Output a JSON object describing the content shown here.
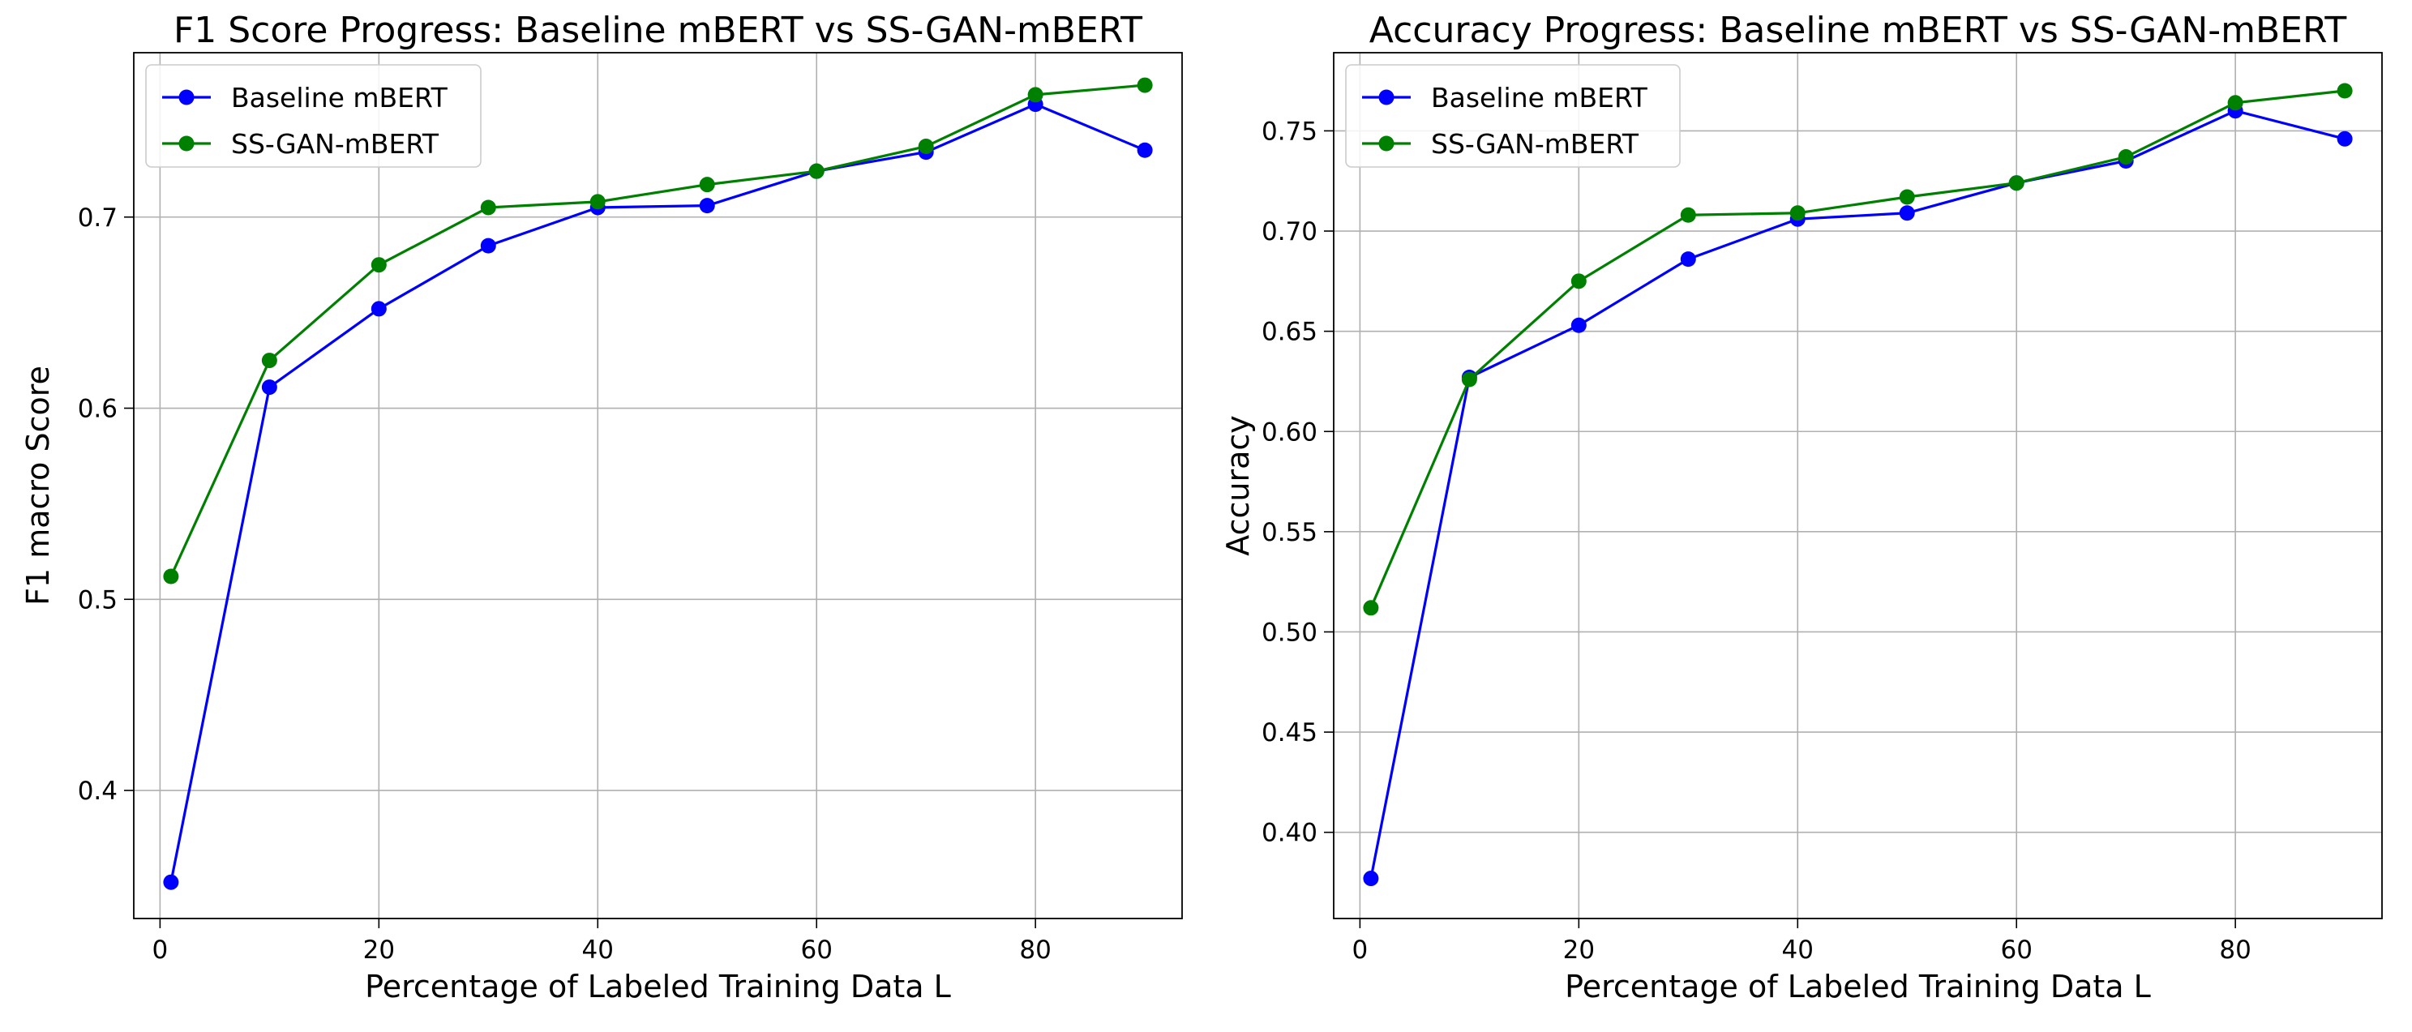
{
  "chart_data": [
    {
      "type": "line",
      "title": "F1 Score Progress: Baseline mBERT vs SS-GAN-mBERT",
      "xlabel": "Percentage of Labeled Training Data L",
      "ylabel": "F1 macro Score",
      "x": [
        1,
        10,
        20,
        30,
        40,
        50,
        60,
        70,
        80,
        90
      ],
      "xlim": [
        -2.4,
        93.4
      ],
      "ylim": [
        0.333,
        0.786
      ],
      "xticks": [
        0,
        20,
        40,
        60,
        80
      ],
      "xtick_labels": [
        "0",
        "20",
        "40",
        "60",
        "80"
      ],
      "yticks": [
        0.4,
        0.5,
        0.6,
        0.7
      ],
      "ytick_labels": [
        "0.4",
        "0.5",
        "0.6",
        "0.7"
      ],
      "grid": true,
      "legend_position": "top-left",
      "series": [
        {
          "name": "Baseline mBERT",
          "color": "#0000ff",
          "marker": "circle",
          "values": [
            0.352,
            0.611,
            0.652,
            0.685,
            0.705,
            0.706,
            0.724,
            0.734,
            0.759,
            0.735
          ]
        },
        {
          "name": "SS-GAN-mBERT",
          "color": "#008000",
          "marker": "circle",
          "values": [
            0.512,
            0.625,
            0.675,
            0.705,
            0.708,
            0.717,
            0.724,
            0.737,
            0.764,
            0.769
          ]
        }
      ]
    },
    {
      "type": "line",
      "title": "Accuracy Progress: Baseline mBERT vs SS-GAN-mBERT",
      "xlabel": "Percentage of Labeled Training Data L",
      "ylabel": "Accuracy",
      "x": [
        1,
        10,
        20,
        30,
        40,
        50,
        60,
        70,
        80,
        90
      ],
      "xlim": [
        -2.4,
        93.4
      ],
      "ylim": [
        0.357,
        0.789
      ],
      "xticks": [
        0,
        20,
        40,
        60,
        80
      ],
      "xtick_labels": [
        "0",
        "20",
        "40",
        "60",
        "80"
      ],
      "yticks": [
        0.4,
        0.45,
        0.5,
        0.55,
        0.6,
        0.65,
        0.7,
        0.75
      ],
      "ytick_labels": [
        "0.40",
        "0.45",
        "0.50",
        "0.55",
        "0.60",
        "0.65",
        "0.70",
        "0.75"
      ],
      "grid": true,
      "legend_position": "top-left",
      "series": [
        {
          "name": "Baseline mBERT",
          "color": "#0000ff",
          "marker": "circle",
          "values": [
            0.377,
            0.627,
            0.653,
            0.686,
            0.706,
            0.709,
            0.724,
            0.735,
            0.76,
            0.746
          ]
        },
        {
          "name": "SS-GAN-mBERT",
          "color": "#008000",
          "marker": "circle",
          "values": [
            0.512,
            0.626,
            0.675,
            0.708,
            0.709,
            0.717,
            0.724,
            0.737,
            0.764,
            0.77
          ]
        }
      ]
    }
  ]
}
